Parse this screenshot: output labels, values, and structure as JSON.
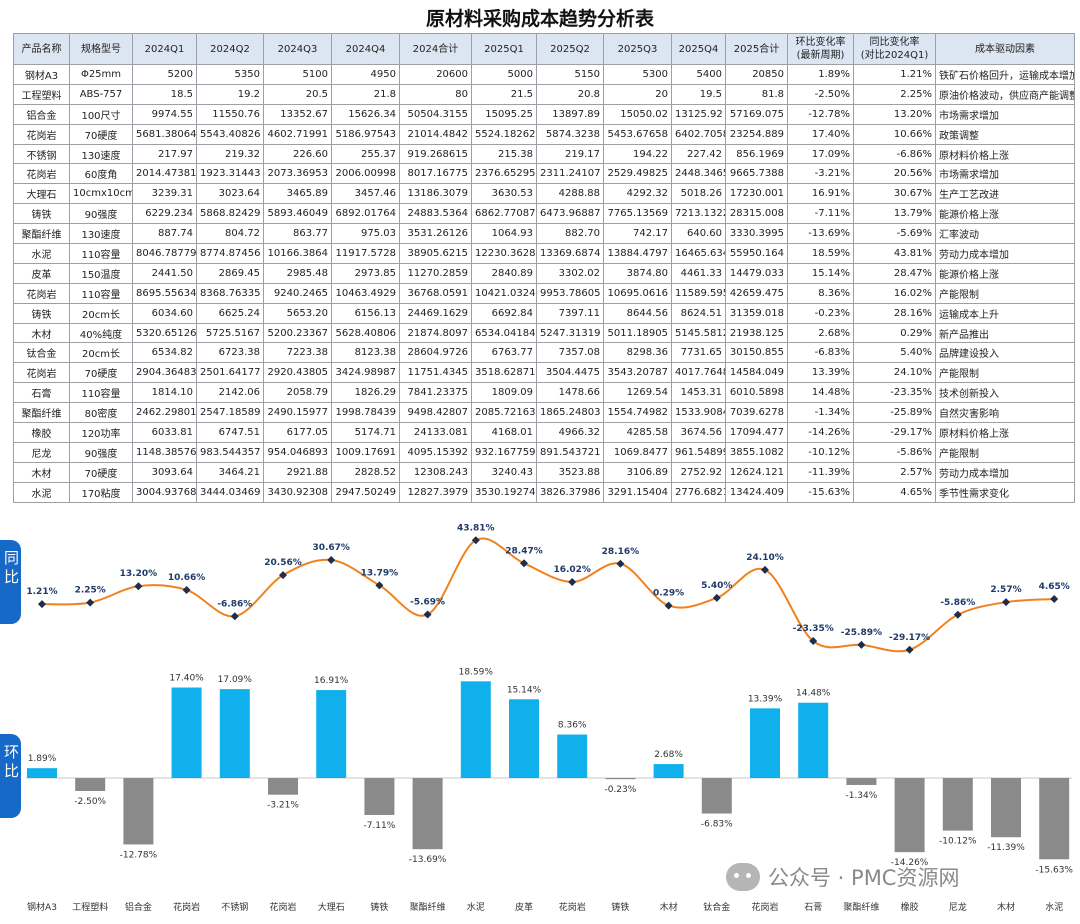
{
  "title": "原材料采购成本趋势分析表",
  "table": {
    "headers": [
      "产品名称",
      "规格型号",
      "2024Q1",
      "2024Q2",
      "2024Q3",
      "2024Q4",
      "2024合计",
      "2025Q1",
      "2025Q2",
      "2025Q3",
      "2025Q4",
      "2025合计",
      "环比变化率\n(最新周期)",
      "同比变化率\n(对比2024Q1)",
      "成本驱动因素"
    ],
    "rows": [
      [
        "钢材A3",
        "Φ25mm",
        "5200",
        "5350",
        "5100",
        "4950",
        "20600",
        "5000",
        "5150",
        "5300",
        "5400",
        "20850",
        "1.89%",
        "1.21%",
        "铁矿石价格回升，运输成本增加"
      ],
      [
        "工程塑料",
        "ABS-757",
        "18.5",
        "19.2",
        "20.5",
        "21.8",
        "80",
        "21.5",
        "20.8",
        "20",
        "19.5",
        "81.8",
        "-2.50%",
        "2.25%",
        "原油价格波动，供应商产能调整"
      ],
      [
        "铝合金",
        "100尺寸",
        "9974.55",
        "11550.76",
        "13352.67",
        "15626.34",
        "50504.3155",
        "15095.25",
        "13897.89",
        "15050.02",
        "13125.92",
        "57169.075",
        "-12.78%",
        "13.20%",
        "市场需求增加"
      ],
      [
        "花岗岩",
        "70硬度",
        "5681.38064",
        "5543.40826",
        "4602.71991",
        "5186.97543",
        "21014.4842",
        "5524.18262",
        "5874.3238",
        "5453.67658",
        "6402.7058",
        "23254.889",
        "17.40%",
        "10.66%",
        "政策调整"
      ],
      [
        "不锈钢",
        "130速度",
        "217.97",
        "219.32",
        "226.60",
        "255.37",
        "919.268615",
        "215.38",
        "219.17",
        "194.22",
        "227.42",
        "856.1969",
        "17.09%",
        "-6.86%",
        "原材料价格上涨"
      ],
      [
        "花岗岩",
        "60度角",
        "2014.47381",
        "1923.31443",
        "2073.36953",
        "2006.00998",
        "8017.16775",
        "2376.65295",
        "2311.24107",
        "2529.49825",
        "2448.3465",
        "9665.7388",
        "-3.21%",
        "20.56%",
        "市场需求增加"
      ],
      [
        "大理石",
        "10cmx10cm",
        "3239.31",
        "3023.64",
        "3465.89",
        "3457.46",
        "13186.3079",
        "3630.53",
        "4288.88",
        "4292.32",
        "5018.26",
        "17230.001",
        "16.91%",
        "30.67%",
        "生产工艺改进"
      ],
      [
        "铸铁",
        "90强度",
        "6229.234",
        "5868.82429",
        "5893.46049",
        "6892.01764",
        "24883.5364",
        "6862.77087",
        "6473.96887",
        "7765.13569",
        "7213.1322",
        "28315.008",
        "-7.11%",
        "13.79%",
        "能源价格上涨"
      ],
      [
        "聚酯纤维",
        "130速度",
        "887.74",
        "804.72",
        "863.77",
        "975.03",
        "3531.26126",
        "1064.93",
        "882.70",
        "742.17",
        "640.60",
        "3330.3995",
        "-13.69%",
        "-5.69%",
        "汇率波动"
      ],
      [
        "水泥",
        "110容量",
        "8046.78779",
        "8774.87456",
        "10166.3864",
        "11917.5728",
        "38905.6215",
        "12230.3628",
        "13369.6874",
        "13884.4797",
        "16465.634",
        "55950.164",
        "18.59%",
        "43.81%",
        "劳动力成本增加"
      ],
      [
        "皮革",
        "150温度",
        "2441.50",
        "2869.45",
        "2985.48",
        "2973.85",
        "11270.2859",
        "2840.89",
        "3302.02",
        "3874.80",
        "4461.33",
        "14479.033",
        "15.14%",
        "28.47%",
        "能源价格上涨"
      ],
      [
        "花岗岩",
        "110容量",
        "8695.55634",
        "8368.76335",
        "9240.2465",
        "10463.4929",
        "36768.0591",
        "10421.0324",
        "9953.78605",
        "10695.0616",
        "11589.595",
        "42659.475",
        "8.36%",
        "16.02%",
        "产能限制"
      ],
      [
        "铸铁",
        "20cm长",
        "6034.60",
        "6625.24",
        "5653.20",
        "6156.13",
        "24469.1629",
        "6692.84",
        "7397.11",
        "8644.56",
        "8624.51",
        "31359.018",
        "-0.23%",
        "28.16%",
        "运输成本上升"
      ],
      [
        "木材",
        "40%纯度",
        "5320.65126",
        "5725.5167",
        "5200.23367",
        "5628.40806",
        "21874.8097",
        "6534.04184",
        "5247.31319",
        "5011.18905",
        "5145.5812",
        "21938.125",
        "2.68%",
        "0.29%",
        "新产品推出"
      ],
      [
        "钛合金",
        "20cm长",
        "6534.82",
        "6723.38",
        "7223.38",
        "8123.38",
        "28604.9726",
        "6763.77",
        "7357.08",
        "8298.36",
        "7731.65",
        "30150.855",
        "-6.83%",
        "5.40%",
        "品牌建设投入"
      ],
      [
        "花岗岩",
        "70硬度",
        "2904.36483",
        "2501.64177",
        "2920.43805",
        "3424.98987",
        "11751.4345",
        "3518.62871",
        "3504.4475",
        "3543.20787",
        "4017.7648",
        "14584.049",
        "13.39%",
        "24.10%",
        "产能限制"
      ],
      [
        "石膏",
        "110容量",
        "1814.10",
        "2142.06",
        "2058.79",
        "1826.29",
        "7841.23375",
        "1809.09",
        "1478.66",
        "1269.54",
        "1453.31",
        "6010.5898",
        "14.48%",
        "-23.35%",
        "技术创新投入"
      ],
      [
        "聚酯纤维",
        "80密度",
        "2462.29801",
        "2547.18589",
        "2490.15977",
        "1998.78439",
        "9498.42807",
        "2085.72163",
        "1865.24803",
        "1554.74982",
        "1533.9084",
        "7039.6278",
        "-1.34%",
        "-25.89%",
        "自然灾害影响"
      ],
      [
        "橡胶",
        "120功率",
        "6033.81",
        "6747.51",
        "6177.05",
        "5174.71",
        "24133.081",
        "4168.01",
        "4966.32",
        "4285.58",
        "3674.56",
        "17094.477",
        "-14.26%",
        "-29.17%",
        "原材料价格上涨"
      ],
      [
        "尼龙",
        "90强度",
        "1148.38576",
        "983.544357",
        "954.046893",
        "1009.17691",
        "4095.15392",
        "932.167759",
        "891.543721",
        "1069.8477",
        "961.54899",
        "3855.1082",
        "-10.12%",
        "-5.86%",
        "产能限制"
      ],
      [
        "木材",
        "70硬度",
        "3093.64",
        "3464.21",
        "2921.88",
        "2828.52",
        "12308.243",
        "3240.43",
        "3523.88",
        "3106.89",
        "2752.92",
        "12624.121",
        "-11.39%",
        "2.57%",
        "劳动力成本增加"
      ],
      [
        "水泥",
        "170粘度",
        "3004.93768",
        "3444.03469",
        "3430.92308",
        "2947.50249",
        "12827.3979",
        "3530.19274",
        "3826.37986",
        "3291.15404",
        "2776.6821",
        "13424.409",
        "-15.63%",
        "4.65%",
        "季节性需求变化"
      ]
    ]
  },
  "side_labels": {
    "yoy": "同比",
    "qoq": "环比"
  },
  "chart_data": [
    {
      "type": "line",
      "name": "同比",
      "categories": [
        "钢材A3",
        "工程塑料",
        "铝合金",
        "花岗岩",
        "不锈钢",
        "花岗岩",
        "大理石",
        "铸铁",
        "聚酯纤维",
        "水泥",
        "皮革",
        "花岗岩",
        "铸铁",
        "木材",
        "钛合金",
        "花岗岩",
        "石膏",
        "聚酯纤维",
        "橡胶",
        "尼龙",
        "木材",
        "水泥"
      ],
      "values": [
        1.21,
        2.25,
        13.2,
        10.66,
        -6.86,
        20.56,
        30.67,
        13.79,
        -5.69,
        43.81,
        28.47,
        16.02,
        28.16,
        0.29,
        5.4,
        24.1,
        -23.35,
        -25.89,
        -29.17,
        -5.86,
        2.57,
        4.65
      ],
      "value_format": "percent",
      "line_color": "#f0821e",
      "marker_color": "#1f2d4d"
    },
    {
      "type": "bar",
      "name": "环比",
      "categories": [
        "钢材A3",
        "工程塑料",
        "铝合金",
        "花岗岩",
        "不锈钢",
        "花岗岩",
        "大理石",
        "铸铁",
        "聚酯纤维",
        "水泥",
        "皮革",
        "花岗岩",
        "铸铁",
        "木材",
        "钛合金",
        "花岗岩",
        "石膏",
        "聚酯纤维",
        "橡胶",
        "尼龙",
        "木材",
        "水泥"
      ],
      "values": [
        1.89,
        -2.5,
        -12.78,
        17.4,
        17.09,
        -3.21,
        16.91,
        -7.11,
        -13.69,
        18.59,
        15.14,
        8.36,
        -0.23,
        2.68,
        -6.83,
        13.39,
        14.48,
        -1.34,
        -14.26,
        -10.12,
        -11.39,
        -15.63
      ],
      "value_format": "percent",
      "positive_color": "#10b0ec",
      "negative_color": "#8a8a8a"
    }
  ],
  "watermark": "公众号 · PMC资源网",
  "colors": {
    "header_bg": "#dce6f2",
    "tab_bg": "#1769c7"
  }
}
